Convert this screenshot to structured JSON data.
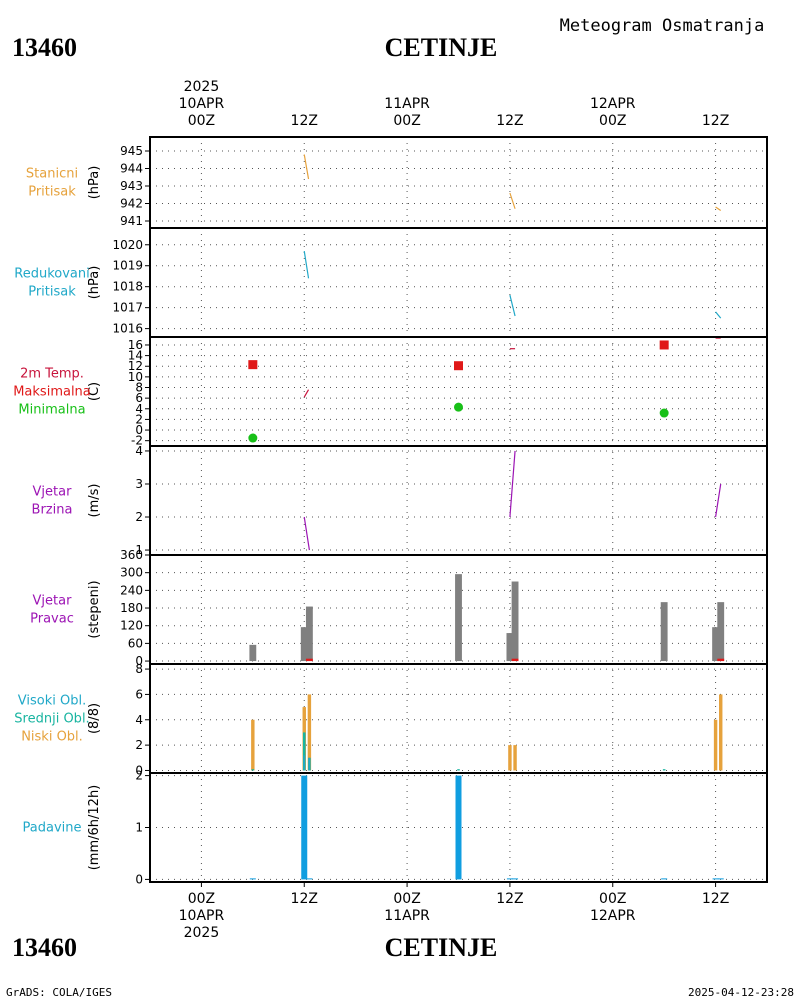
{
  "header": {
    "station_id": "13460",
    "station_name": "CETINJE",
    "title": "Meteogram Osmatranja"
  },
  "footer": {
    "station_id": "13460",
    "station_name": "CETINJE",
    "credit": "GrADS: COLA/IGES",
    "timestamp": "2025-04-12-23:28"
  },
  "time_axis": {
    "range_hours": [
      -6,
      66
    ],
    "ticks": [
      {
        "h": 0,
        "top": [
          "2025",
          "10APR",
          "00Z"
        ],
        "bottom": [
          "00Z",
          "10APR",
          "2025"
        ]
      },
      {
        "h": 12,
        "top": [
          "",
          "",
          "12Z"
        ],
        "bottom": [
          "12Z",
          "",
          ""
        ]
      },
      {
        "h": 24,
        "top": [
          "",
          "11APR",
          "00Z"
        ],
        "bottom": [
          "00Z",
          "11APR",
          ""
        ]
      },
      {
        "h": 36,
        "top": [
          "",
          "",
          "12Z"
        ],
        "bottom": [
          "12Z",
          "",
          ""
        ]
      },
      {
        "h": 48,
        "top": [
          "",
          "12APR",
          "00Z"
        ],
        "bottom": [
          "00Z",
          "12APR",
          ""
        ]
      },
      {
        "h": 60,
        "top": [
          "",
          "",
          "12Z"
        ],
        "bottom": [
          "12Z",
          "",
          ""
        ]
      }
    ]
  },
  "chart_data": [
    {
      "type": "line",
      "labels": [
        "Stanicni",
        "Pritisak"
      ],
      "label_colors": [
        "#e6a23c",
        "#e6a23c"
      ],
      "ylabel": "(hPa)",
      "ylim": [
        940.6,
        945.8
      ],
      "yticks": [
        "941",
        "942",
        "943",
        "944",
        "945"
      ],
      "series": [
        {
          "color": "#e6a23c",
          "segments": [
            [
              [
                12,
                944.8
              ],
              [
                12.5,
                943.4
              ]
            ],
            [
              [
                36,
                942.6
              ],
              [
                36.6,
                941.7
              ]
            ],
            [
              [
                60,
                941.8
              ],
              [
                60.6,
                941.6
              ]
            ]
          ]
        }
      ]
    },
    {
      "type": "line",
      "labels": [
        "Redukovani",
        "Pritisak"
      ],
      "label_colors": [
        "#20a8c8",
        "#20a8c8"
      ],
      "ylabel": "(hPa)",
      "ylim": [
        1015.6,
        1020.8
      ],
      "yticks": [
        "1016",
        "1017",
        "1018",
        "1019",
        "1020"
      ],
      "series": [
        {
          "color": "#20a8c8",
          "segments": [
            [
              [
                12,
                1019.7
              ],
              [
                12.5,
                1018.4
              ]
            ],
            [
              [
                36,
                1017.6
              ],
              [
                36.6,
                1016.6
              ]
            ],
            [
              [
                60,
                1016.8
              ],
              [
                60.6,
                1016.5
              ]
            ]
          ]
        }
      ]
    },
    {
      "type": "line",
      "labels": [
        "2m Temp.",
        "Maksimalna",
        "Minimalna"
      ],
      "label_colors": [
        "#c8143c",
        "#e01818",
        "#18c018"
      ],
      "ylabel": "(C)",
      "ylim": [
        -3,
        17.5
      ],
      "yticks": [
        "-2",
        "0",
        "2",
        "4",
        "6",
        "8",
        "10",
        "12",
        "14",
        "16"
      ],
      "series": [
        {
          "name": "2m Temp.",
          "color": "#c8143c",
          "segments": [
            [
              [
                12,
                6.2
              ],
              [
                12.5,
                7.6
              ]
            ],
            [
              [
                36,
                15.3
              ],
              [
                36.6,
                15.3
              ]
            ],
            [
              [
                60,
                17.3
              ],
              [
                60.6,
                17.3
              ]
            ]
          ]
        }
      ],
      "markers": [
        {
          "name": "Maksimalna",
          "shape": "square",
          "color": "#e01818",
          "points": [
            [
              6,
              12.3
            ],
            [
              30,
              12.1
            ],
            [
              54,
              16.0
            ]
          ]
        },
        {
          "name": "Minimalna",
          "shape": "circle",
          "color": "#18c018",
          "points": [
            [
              6,
              -1.5
            ],
            [
              30,
              4.3
            ],
            [
              54,
              3.2
            ]
          ]
        }
      ]
    },
    {
      "type": "line",
      "labels": [
        "Vjetar",
        "Brzina"
      ],
      "label_colors": [
        "#9c14b4",
        "#9c14b4"
      ],
      "ylabel": "(m/s)",
      "ylim": [
        0.85,
        4.15
      ],
      "yticks": [
        "1",
        "2",
        "3",
        "4"
      ],
      "series": [
        {
          "color": "#9c14b4",
          "segments": [
            [
              [
                12,
                2.0
              ],
              [
                12.6,
                1.0
              ]
            ],
            [
              [
                36,
                2.0
              ],
              [
                36.6,
                4.0
              ]
            ],
            [
              [
                60,
                2.0
              ],
              [
                60.6,
                3.0
              ]
            ]
          ]
        }
      ]
    },
    {
      "type": "bar",
      "labels": [
        "Vjetar",
        "Pravac"
      ],
      "label_colors": [
        "#9c14b4",
        "#9c14b4"
      ],
      "ylabel": "(stepeni)",
      "ylim": [
        -10,
        360
      ],
      "yticks": [
        "0",
        "60",
        "120",
        "180",
        "240",
        "300",
        "360"
      ],
      "bars": [
        {
          "color": "#808080",
          "width_h": 0.8,
          "points": [
            [
              6,
              55
            ],
            [
              12,
              115
            ],
            [
              12.6,
              185
            ],
            [
              30,
              295
            ],
            [
              36,
              95
            ],
            [
              36.6,
              270
            ],
            [
              54,
              200
            ],
            [
              60,
              115
            ],
            [
              60.6,
              200
            ]
          ]
        },
        {
          "color": "#e01818",
          "width_h": 0.8,
          "points": [
            [
              12.6,
              8
            ],
            [
              36.6,
              8
            ],
            [
              60.6,
              8
            ]
          ]
        }
      ]
    },
    {
      "type": "bar",
      "labels": [
        "Visoki Obl.",
        "Srednji Obl.",
        "Niski Obl."
      ],
      "label_colors": [
        "#20a8c8",
        "#18b4a0",
        "#e6a23c"
      ],
      "ylabel": "(8/8)",
      "ylim": [
        -0.2,
        8.4
      ],
      "yticks": [
        "0",
        "2",
        "4",
        "6",
        "8"
      ],
      "bars": [
        {
          "name": "Niski Obl.",
          "color": "#e6a23c",
          "width_h": 0.4,
          "points": [
            [
              6,
              4
            ],
            [
              12,
              5
            ],
            [
              12.6,
              6
            ],
            [
              36,
              2
            ],
            [
              36.6,
              2
            ],
            [
              60,
              4
            ],
            [
              60.6,
              6
            ]
          ]
        },
        {
          "name": "Srednji Obl.",
          "color": "#18b4a0",
          "width_h": 0.3,
          "points": [
            [
              12,
              3
            ],
            [
              12.6,
              1
            ],
            [
              6,
              0.1
            ],
            [
              30,
              0.1
            ],
            [
              54,
              0.1
            ]
          ]
        },
        {
          "name": "Visoki Obl.",
          "color": "#20a8c8",
          "width_h": 0.2,
          "points": [
            [
              12,
              1.2
            ],
            [
              12.6,
              1.0
            ]
          ]
        }
      ]
    },
    {
      "type": "bar",
      "labels": [
        "Padavine"
      ],
      "label_colors": [
        "#20a8c8"
      ],
      "ylabel": "(mm/6h/12h)",
      "ylim": [
        -0.05,
        2.05
      ],
      "yticks": [
        "0",
        "1",
        "2"
      ],
      "bars": [
        {
          "color": "#109ee0",
          "width_h": 0.7,
          "points": [
            [
              12,
              2.0
            ],
            [
              30,
              2.0
            ],
            [
              6,
              0.02
            ],
            [
              12.6,
              0.02
            ],
            [
              36,
              0.02
            ],
            [
              36.6,
              0.02
            ],
            [
              54,
              0.02
            ],
            [
              60,
              0.02
            ],
            [
              60.6,
              0.02
            ]
          ]
        }
      ]
    }
  ]
}
